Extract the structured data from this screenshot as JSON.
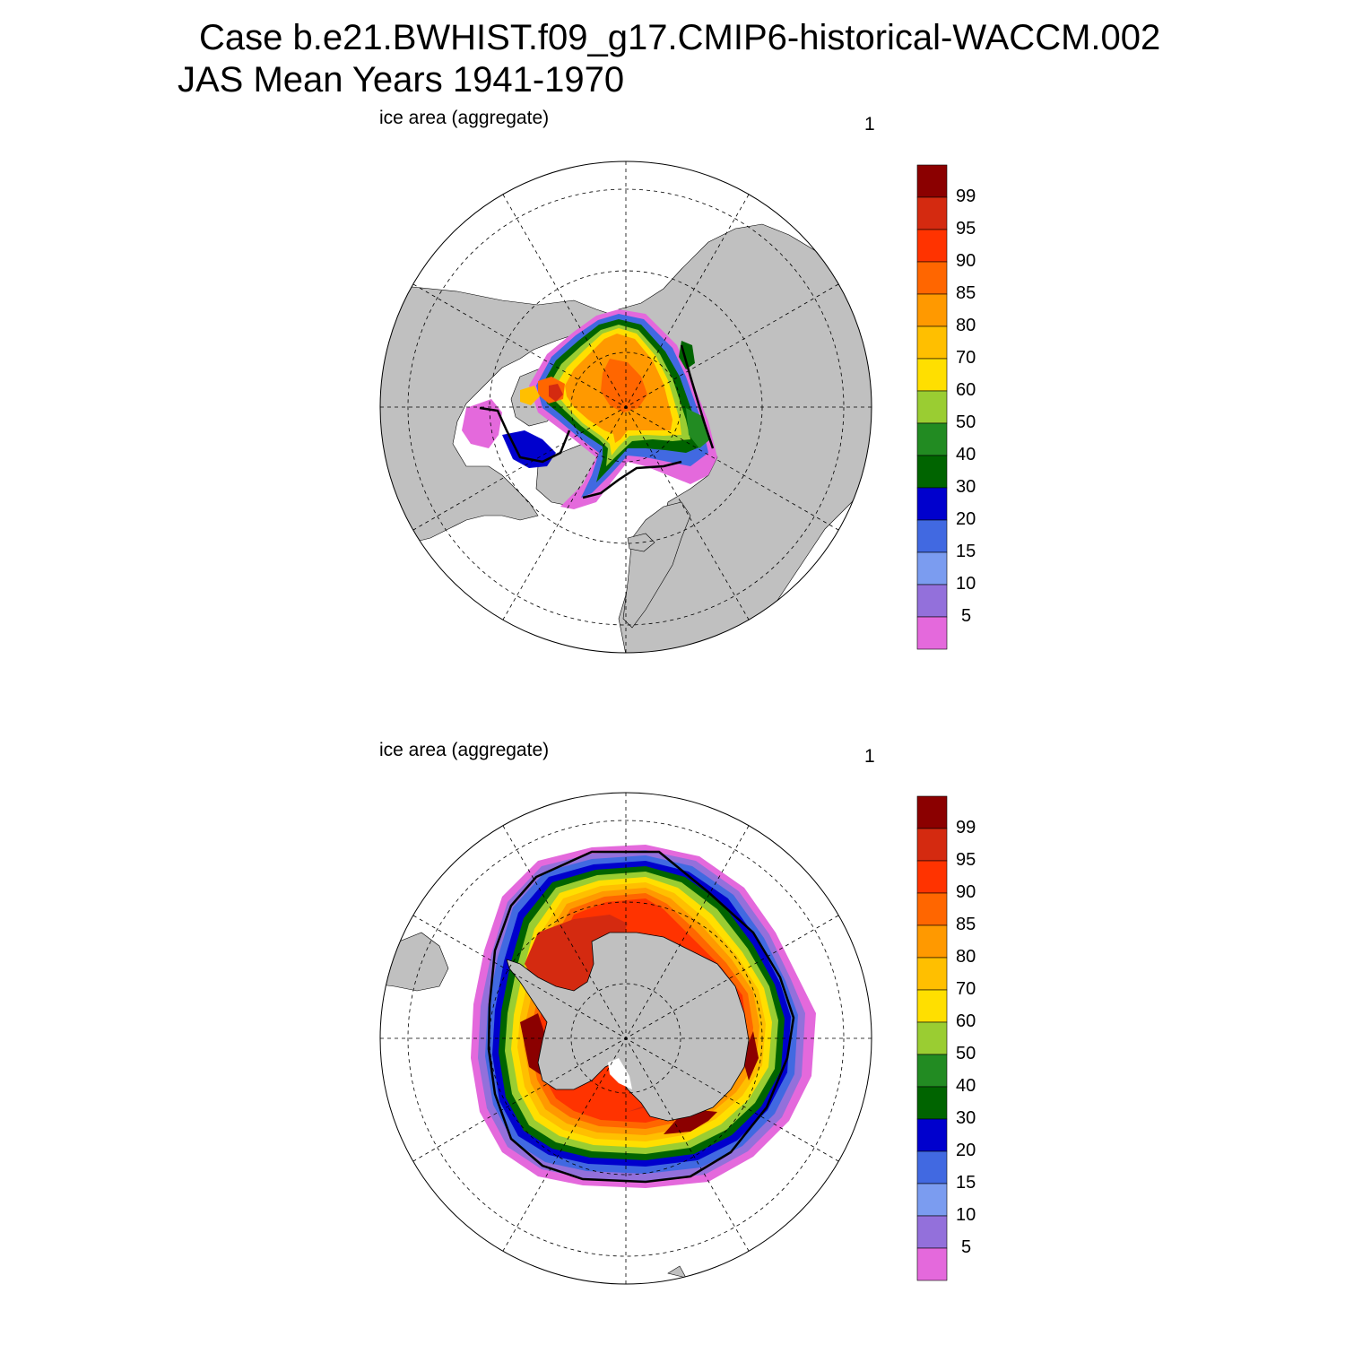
{
  "title": {
    "line1": "Case b.e21.BWHIST.f09_g17.CMIP6-historical-WACCM.002",
    "line2": "JAS Mean   Years 1941-1970"
  },
  "panels": [
    {
      "label": "ice area  (aggregate)",
      "number": "1",
      "hemisphere": "north"
    },
    {
      "label": "ice area  (aggregate)",
      "number": "1",
      "hemisphere": "south"
    }
  ],
  "colorbar": {
    "levels": [
      "99",
      "95",
      "90",
      "85",
      "80",
      "70",
      "60",
      "50",
      "40",
      "30",
      "20",
      "15",
      "10",
      "5"
    ],
    "colors": [
      "#8b0000",
      "#d42a10",
      "#ff3300",
      "#ff6600",
      "#ff9900",
      "#ffbf00",
      "#ffdf00",
      "#9acd32",
      "#228b22",
      "#006400",
      "#0000cd",
      "#4169e1",
      "#7b9cf0",
      "#9370db",
      "#e469dc"
    ]
  },
  "colors": {
    "land": "#c0c0c0",
    "ocean": "#ffffff",
    "contour": "#000000"
  }
}
